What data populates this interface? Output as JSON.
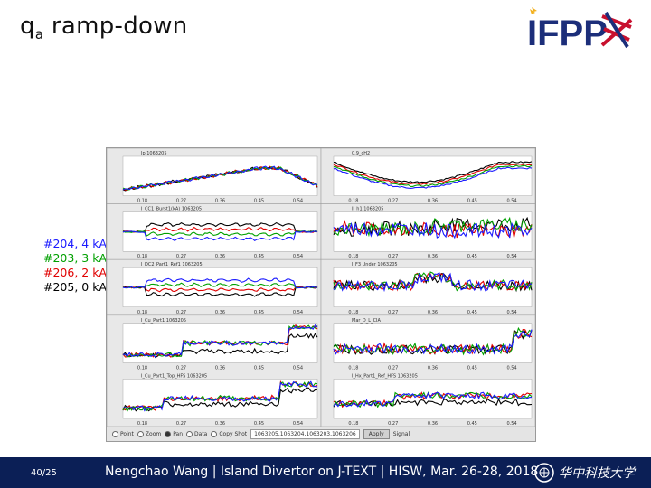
{
  "slide": {
    "title_main": "q",
    "title_sub": "a",
    "title_rest": " ramp-down",
    "logo_text": "IFPP",
    "page_number": "40/25",
    "footer": "Nengchao Wang | Island Divertor on J-TEXT | HISW, Mar. 26-28, 2018",
    "university_name": "华中科技大学"
  },
  "legend": [
    {
      "label": "#204, 4 kA",
      "color": "#1a1aff"
    },
    {
      "label": "#203, 3 kA",
      "color": "#00a000"
    },
    {
      "label": "#206, 2 kA",
      "color": "#e00000"
    },
    {
      "label": "#205, 0 kA",
      "color": "#000000"
    }
  ],
  "plot_window": {
    "panels": [
      {
        "title": "Ip  1063205",
        "ticks": [
          "0.18",
          "0.27",
          "0.36",
          "0.45",
          "0.54"
        ]
      },
      {
        "title": "0.9_cH2",
        "ticks": [
          "0.18",
          "0.27",
          "0.36",
          "0.45",
          "0.54"
        ]
      },
      {
        "title": "I_CC1_Burst1(kA)  1063205",
        "ticks": [
          "0.18",
          "0.27",
          "0.36",
          "0.45",
          "0.54"
        ]
      },
      {
        "title": "ll_h1  1063205",
        "ticks": [
          "0.18",
          "0.27",
          "0.36",
          "0.45",
          "0.54"
        ]
      },
      {
        "title": "I_DC2_Part1_Ref1  1063205",
        "ticks": [
          "0.18",
          "0.27",
          "0.36",
          "0.45",
          "0.54"
        ]
      },
      {
        "title": "I_F3 Under  1063205",
        "ticks": [
          "0.18",
          "0.27",
          "0.36",
          "0.45",
          "0.54"
        ]
      },
      {
        "title": "I_Cu_Part1  1063205",
        "ticks": [
          "0.18",
          "0.27",
          "0.36",
          "0.45",
          "0.54"
        ]
      },
      {
        "title": "Mar_D_L_CIA",
        "ticks": [
          "0.18",
          "0.27",
          "0.36",
          "0.45",
          "0.54"
        ]
      },
      {
        "title": "I_Cu_Part1_Top_HFS  1063205",
        "ticks": [
          "0.18",
          "0.27",
          "0.36",
          "0.45",
          "0.54"
        ]
      },
      {
        "title": "I_Hx_Part1_Ref_HFS  1063205",
        "ticks": [
          "0.18",
          "0.27",
          "0.36",
          "0.45",
          "0.54"
        ]
      }
    ],
    "toolbar": {
      "opt1": "Point",
      "opt2": "Zoom",
      "opt3": "Pan",
      "opt4": "Data",
      "opt5": "Copy Shot",
      "shot_field": "1063205,1063204,1063203,1063206",
      "apply": "Apply",
      "signal": "Signal"
    }
  }
}
